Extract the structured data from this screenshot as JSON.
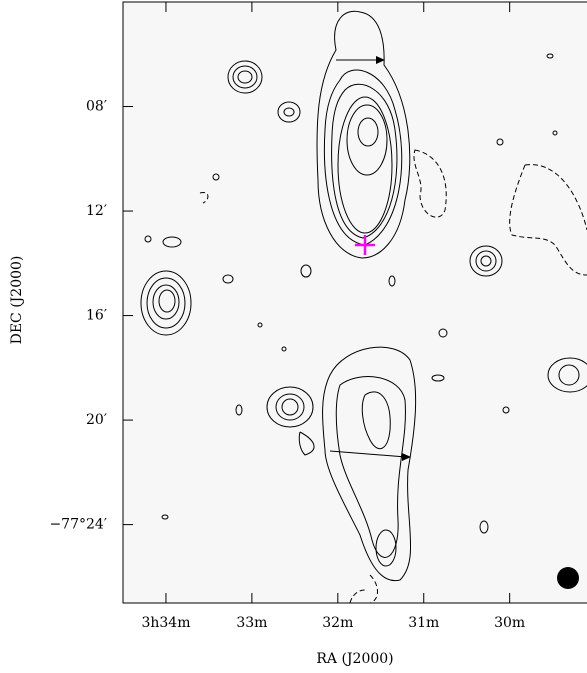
{
  "chart_data": {
    "type": "contour",
    "xlabel": "RA (J2000)",
    "ylabel": "DEC (J2000)",
    "xlim": [
      34.5,
      29.1
    ],
    "xticks": [
      {
        "value": 34,
        "label": "3h34m"
      },
      {
        "value": 33,
        "label": "33m"
      },
      {
        "value": 32,
        "label": "32m"
      },
      {
        "value": 31,
        "label": "31m"
      },
      {
        "value": 30,
        "label": "30m"
      }
    ],
    "ylim": [
      27,
      4
    ],
    "yticks": [
      {
        "value": 8,
        "label": "08′"
      },
      {
        "value": 12,
        "label": "12′"
      },
      {
        "value": 16,
        "label": "16′"
      },
      {
        "value": 20,
        "label": "20′"
      },
      {
        "value": 24,
        "label": "−77°24′"
      }
    ]
  }
}
